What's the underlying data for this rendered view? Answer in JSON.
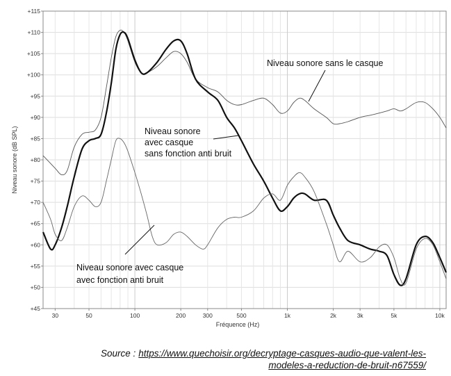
{
  "chart_data": {
    "type": "line",
    "xlabel": "Fréquence (Hz)",
    "ylabel": "Niveau sonore (dB SPL)",
    "xscale": "log",
    "xlim": [
      25,
      11000
    ],
    "ylim": [
      45,
      115
    ],
    "grid": true,
    "x_ticks": [
      {
        "value": 30,
        "label": "30"
      },
      {
        "value": 50,
        "label": "50"
      },
      {
        "value": 100,
        "label": "100"
      },
      {
        "value": 200,
        "label": "200"
      },
      {
        "value": 300,
        "label": "300"
      },
      {
        "value": 500,
        "label": "500"
      },
      {
        "value": 1000,
        "label": "1k"
      },
      {
        "value": 2000,
        "label": "2k"
      },
      {
        "value": 3000,
        "label": "3k"
      },
      {
        "value": 5000,
        "label": "5k"
      },
      {
        "value": 10000,
        "label": "10k"
      }
    ],
    "y_ticks": [
      {
        "value": 45,
        "label": "+45"
      },
      {
        "value": 50,
        "label": "+50"
      },
      {
        "value": 55,
        "label": "+55"
      },
      {
        "value": 60,
        "label": "+60"
      },
      {
        "value": 65,
        "label": "+65"
      },
      {
        "value": 70,
        "label": "+70"
      },
      {
        "value": 75,
        "label": "+75"
      },
      {
        "value": 80,
        "label": "+80"
      },
      {
        "value": 85,
        "label": "+85"
      },
      {
        "value": 90,
        "label": "+90"
      },
      {
        "value": 95,
        "label": "+95"
      },
      {
        "value": 100,
        "label": "+100"
      },
      {
        "value": 105,
        "label": "+105"
      },
      {
        "value": 110,
        "label": "+110"
      },
      {
        "value": 115,
        "label": "+115"
      }
    ],
    "series": [
      {
        "name": "Niveau sonore sans le casque",
        "color": "#555555",
        "width": 0.9,
        "points": [
          [
            25,
            81
          ],
          [
            30,
            78
          ],
          [
            33,
            76.5
          ],
          [
            36,
            77.5
          ],
          [
            40,
            83
          ],
          [
            45,
            86
          ],
          [
            50,
            86.5
          ],
          [
            55,
            87
          ],
          [
            60,
            90
          ],
          [
            65,
            97
          ],
          [
            70,
            104
          ],
          [
            75,
            109
          ],
          [
            80,
            110.5
          ],
          [
            85,
            110
          ],
          [
            90,
            108
          ],
          [
            100,
            103
          ],
          [
            110,
            100.5
          ],
          [
            120,
            100.5
          ],
          [
            140,
            102
          ],
          [
            160,
            104
          ],
          [
            180,
            105.5
          ],
          [
            200,
            105
          ],
          [
            220,
            103
          ],
          [
            250,
            99
          ],
          [
            300,
            97
          ],
          [
            350,
            96
          ],
          [
            400,
            94
          ],
          [
            450,
            93
          ],
          [
            500,
            93
          ],
          [
            600,
            94
          ],
          [
            700,
            94.5
          ],
          [
            800,
            93
          ],
          [
            900,
            91
          ],
          [
            1000,
            91.5
          ],
          [
            1100,
            93.5
          ],
          [
            1200,
            94.5
          ],
          [
            1300,
            94
          ],
          [
            1500,
            92
          ],
          [
            1800,
            90
          ],
          [
            2000,
            88.5
          ],
          [
            2200,
            88.5
          ],
          [
            2500,
            89
          ],
          [
            3000,
            90
          ],
          [
            3500,
            90.5
          ],
          [
            4000,
            91
          ],
          [
            4500,
            91.5
          ],
          [
            5000,
            92
          ],
          [
            5500,
            91.5
          ],
          [
            6000,
            92
          ],
          [
            7000,
            93.5
          ],
          [
            8000,
            93.5
          ],
          [
            9000,
            92
          ],
          [
            10000,
            90
          ],
          [
            11000,
            87.5
          ]
        ]
      },
      {
        "name": "Niveau sonore avec casque sans fonction anti bruit",
        "color": "#111111",
        "width": 2.2,
        "points": [
          [
            25,
            63
          ],
          [
            28,
            59
          ],
          [
            30,
            60
          ],
          [
            33,
            64
          ],
          [
            36,
            69
          ],
          [
            40,
            76
          ],
          [
            45,
            82.5
          ],
          [
            50,
            84.5
          ],
          [
            55,
            85
          ],
          [
            60,
            86
          ],
          [
            65,
            91
          ],
          [
            70,
            98
          ],
          [
            75,
            106
          ],
          [
            80,
            109.5
          ],
          [
            85,
            110
          ],
          [
            90,
            108.5
          ],
          [
            100,
            103.5
          ],
          [
            110,
            100.5
          ],
          [
            120,
            100.5
          ],
          [
            140,
            103
          ],
          [
            160,
            106
          ],
          [
            180,
            108
          ],
          [
            200,
            108
          ],
          [
            220,
            105
          ],
          [
            250,
            99
          ],
          [
            300,
            96
          ],
          [
            350,
            94
          ],
          [
            400,
            90
          ],
          [
            450,
            87.5
          ],
          [
            500,
            84.5
          ],
          [
            600,
            79
          ],
          [
            700,
            75
          ],
          [
            800,
            71
          ],
          [
            900,
            68
          ],
          [
            1000,
            69
          ],
          [
            1100,
            71
          ],
          [
            1200,
            72
          ],
          [
            1300,
            72
          ],
          [
            1500,
            70.5
          ],
          [
            1800,
            70.5
          ],
          [
            2000,
            67
          ],
          [
            2200,
            64
          ],
          [
            2500,
            61
          ],
          [
            3000,
            60
          ],
          [
            3500,
            59
          ],
          [
            4000,
            58.5
          ],
          [
            4500,
            57.5
          ],
          [
            5000,
            53
          ],
          [
            5500,
            50.5
          ],
          [
            6000,
            52
          ],
          [
            7000,
            60
          ],
          [
            8000,
            62
          ],
          [
            9000,
            60.5
          ],
          [
            10000,
            57
          ],
          [
            11000,
            53.5
          ]
        ]
      },
      {
        "name": "Niveau sonore avec casque avec fonction anti bruit",
        "color": "#666666",
        "width": 0.9,
        "points": [
          [
            25,
            70
          ],
          [
            28,
            66
          ],
          [
            30,
            62.5
          ],
          [
            33,
            61
          ],
          [
            36,
            64
          ],
          [
            40,
            69
          ],
          [
            45,
            71.5
          ],
          [
            50,
            70.5
          ],
          [
            55,
            69
          ],
          [
            60,
            70
          ],
          [
            65,
            75
          ],
          [
            70,
            80
          ],
          [
            75,
            84.5
          ],
          [
            80,
            85
          ],
          [
            85,
            84
          ],
          [
            90,
            82
          ],
          [
            100,
            77
          ],
          [
            110,
            72
          ],
          [
            120,
            67
          ],
          [
            130,
            62
          ],
          [
            140,
            60
          ],
          [
            160,
            60.5
          ],
          [
            180,
            62.5
          ],
          [
            200,
            63
          ],
          [
            220,
            62
          ],
          [
            250,
            60
          ],
          [
            280,
            59
          ],
          [
            300,
            60
          ],
          [
            350,
            64
          ],
          [
            400,
            66
          ],
          [
            450,
            66.5
          ],
          [
            500,
            66.5
          ],
          [
            600,
            68
          ],
          [
            700,
            71
          ],
          [
            800,
            72
          ],
          [
            900,
            70.5
          ],
          [
            1000,
            74
          ],
          [
            1100,
            76
          ],
          [
            1200,
            77
          ],
          [
            1300,
            76
          ],
          [
            1500,
            72.5
          ],
          [
            1800,
            65
          ],
          [
            2000,
            60
          ],
          [
            2200,
            56
          ],
          [
            2500,
            58.5
          ],
          [
            3000,
            56
          ],
          [
            3500,
            57
          ],
          [
            4000,
            59.5
          ],
          [
            4500,
            60
          ],
          [
            5000,
            57
          ],
          [
            5500,
            52
          ],
          [
            6000,
            51
          ],
          [
            7000,
            59
          ],
          [
            8000,
            61.5
          ],
          [
            9000,
            60
          ],
          [
            10000,
            56
          ],
          [
            11000,
            52
          ]
        ]
      }
    ],
    "annotations": [
      {
        "lines": [
          "Niveau sonore sans le casque"
        ]
      },
      {
        "lines": [
          "Niveau sonore",
          "avec casque",
          "sans fonction anti bruit"
        ]
      },
      {
        "lines": [
          "Niveau sonore avec casque",
          "avec fonction anti bruit"
        ]
      }
    ]
  },
  "source": {
    "label": "Source :",
    "url_line1": "https://www.quechoisir.org/decryptage-casques-audio-que-valent-les-",
    "url_line2": "modeles-a-reduction-de-bruit-n67559/"
  }
}
